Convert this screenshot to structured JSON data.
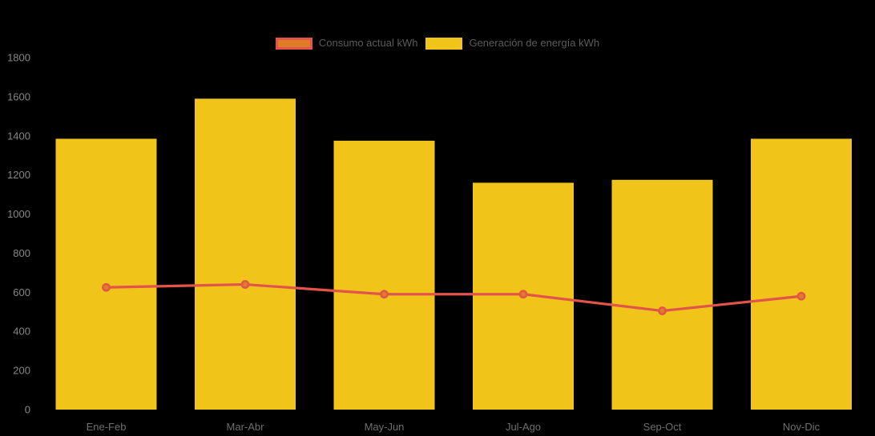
{
  "chart_data": {
    "type": "bar",
    "title": "",
    "xlabel": "",
    "ylabel": "",
    "categories": [
      "Ene-Feb",
      "Mar-Abr",
      "May-Jun",
      "Jul-Ago",
      "Sep-Oct",
      "Nov-Dic"
    ],
    "series": [
      {
        "name": "Consumo actual kWh",
        "type": "line",
        "values": [
          625,
          640,
          590,
          590,
          505,
          580
        ],
        "color": "#e2544a",
        "marker_fill": "#e07b28"
      },
      {
        "name": "Generación de energía kWh",
        "type": "bar",
        "values": [
          1385,
          1590,
          1375,
          1160,
          1175,
          1385
        ],
        "color": "#f0c419"
      }
    ],
    "ylim": [
      0,
      1800
    ],
    "yticks": [
      0,
      200,
      400,
      600,
      800,
      1000,
      1200,
      1400,
      1600,
      1800
    ],
    "grid": false,
    "legend_position": "top-center",
    "background_color": "#000000",
    "axis_tick_color": "#878787",
    "category_label_color": "#6f6f6f",
    "legend_text_color": "#5c5c5c"
  }
}
